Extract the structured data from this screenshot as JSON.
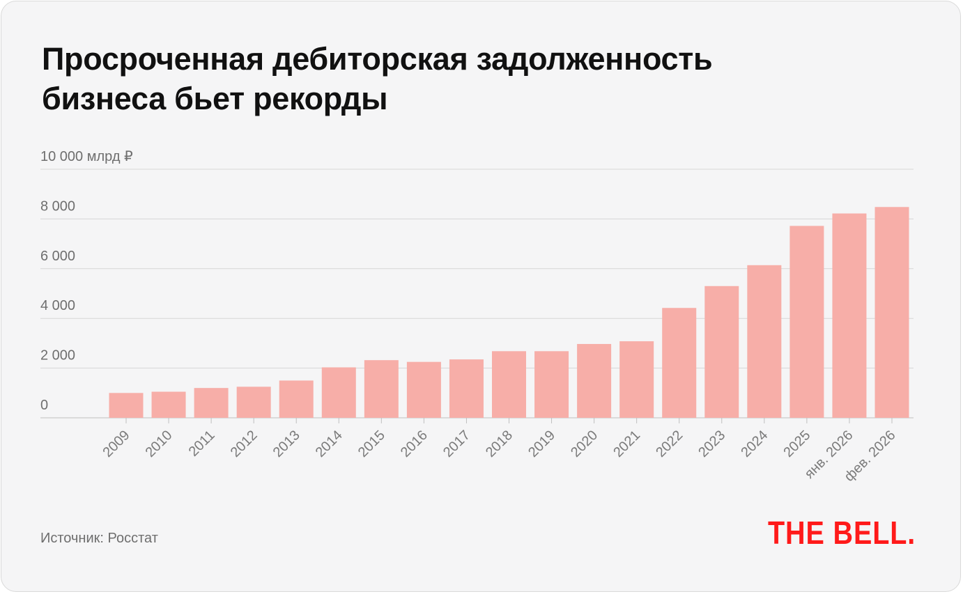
{
  "title_lines": [
    "Просроченная дебиторская задолженность",
    "бизнеса бьет рекорды"
  ],
  "source": "Источник: Росстат",
  "logo": "THE BELL.",
  "colors": {
    "bar": "#f7aea8",
    "logo": "#ff1a1a",
    "grid": "#d6d6d6",
    "background": "#f5f5f6"
  },
  "chart_data": {
    "type": "bar",
    "title": "Просроченная дебиторская задолженность бизнеса бьет рекорды",
    "ylabel": "",
    "xlabel": "",
    "ylim": [
      0,
      10000
    ],
    "y_ticks": [
      {
        "value": 0,
        "label": "0"
      },
      {
        "value": 2000,
        "label": "2 000"
      },
      {
        "value": 4000,
        "label": "4 000"
      },
      {
        "value": 6000,
        "label": "6 000"
      },
      {
        "value": 8000,
        "label": "8 000"
      },
      {
        "value": 10000,
        "label": "10 000 млрд ₽"
      }
    ],
    "grid": true,
    "categories": [
      "2009",
      "2010",
      "2011",
      "2012",
      "2013",
      "2014",
      "2015",
      "2016",
      "2017",
      "2018",
      "2019",
      "2020",
      "2021",
      "2022",
      "2023",
      "2024",
      "2025",
      "янв. 2026",
      "фев. 2026"
    ],
    "values": [
      1000,
      1050,
      1200,
      1250,
      1500,
      2030,
      2320,
      2250,
      2350,
      2680,
      2680,
      2970,
      3080,
      4420,
      5300,
      6140,
      7720,
      8220,
      8480
    ]
  }
}
